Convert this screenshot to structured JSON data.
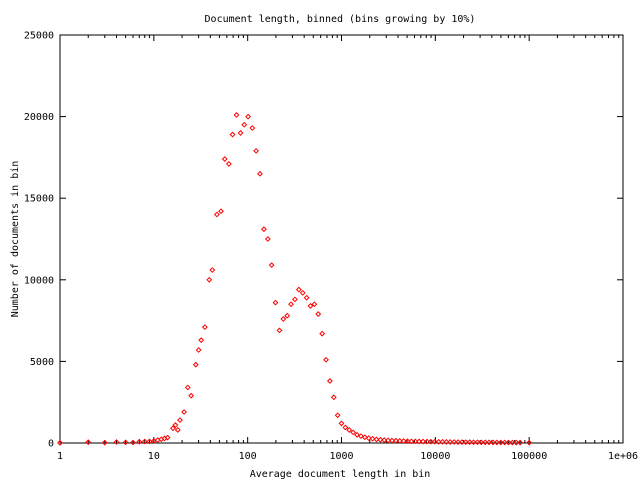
{
  "chart_data": {
    "type": "scatter",
    "title": "Document length, binned (bins growing by 10%)",
    "xlabel": "Average document length in bin",
    "ylabel": "Number of documents in bin",
    "x_scale": "log",
    "xlim": [
      1,
      1000000
    ],
    "ylim": [
      0,
      25000
    ],
    "x_ticks": [
      {
        "value": 1,
        "label": "1"
      },
      {
        "value": 10,
        "label": "10"
      },
      {
        "value": 100,
        "label": "100"
      },
      {
        "value": 1000,
        "label": "1000"
      },
      {
        "value": 10000,
        "label": "10000"
      },
      {
        "value": 100000,
        "label": "100000"
      },
      {
        "value": 1000000,
        "label": "1e+06"
      }
    ],
    "y_ticks": [
      {
        "value": 0,
        "label": "0"
      },
      {
        "value": 5000,
        "label": "5000"
      },
      {
        "value": 10000,
        "label": "10000"
      },
      {
        "value": 15000,
        "label": "15000"
      },
      {
        "value": 20000,
        "label": "20000"
      },
      {
        "value": 25000,
        "label": "25000"
      }
    ],
    "grid": false,
    "legend": "none",
    "marker": "diamond",
    "marker_color": "#ff0000",
    "points": [
      [
        1,
        10
      ],
      [
        2,
        50
      ],
      [
        3,
        20
      ],
      [
        4,
        60
      ],
      [
        5,
        40
      ],
      [
        6,
        30
      ],
      [
        7,
        80
      ],
      [
        8,
        90
      ],
      [
        9,
        100
      ],
      [
        10,
        120
      ],
      [
        11,
        180
      ],
      [
        12,
        230
      ],
      [
        13,
        280
      ],
      [
        14,
        330
      ],
      [
        16,
        900
      ],
      [
        17,
        1100
      ],
      [
        18,
        800
      ],
      [
        19,
        1400
      ],
      [
        21,
        1900
      ],
      [
        23,
        3400
      ],
      [
        25,
        2900
      ],
      [
        28,
        4800
      ],
      [
        30,
        5700
      ],
      [
        32,
        6300
      ],
      [
        35,
        7100
      ],
      [
        39,
        10000
      ],
      [
        42,
        10600
      ],
      [
        47,
        14000
      ],
      [
        52,
        14200
      ],
      [
        57,
        17400
      ],
      [
        63,
        17100
      ],
      [
        69,
        18900
      ],
      [
        76,
        20100
      ],
      [
        84,
        19000
      ],
      [
        92,
        19500
      ],
      [
        101,
        20000
      ],
      [
        112,
        19300
      ],
      [
        123,
        17900
      ],
      [
        135,
        16500
      ],
      [
        149,
        13100
      ],
      [
        164,
        12500
      ],
      [
        180,
        10900
      ],
      [
        198,
        8600
      ],
      [
        218,
        6900
      ],
      [
        240,
        7600
      ],
      [
        264,
        7800
      ],
      [
        290,
        8500
      ],
      [
        319,
        8800
      ],
      [
        351,
        9400
      ],
      [
        386,
        9200
      ],
      [
        425,
        8900
      ],
      [
        467,
        8400
      ],
      [
        514,
        8500
      ],
      [
        565,
        7900
      ],
      [
        622,
        6700
      ],
      [
        684,
        5100
      ],
      [
        752,
        3800
      ],
      [
        828,
        2800
      ],
      [
        910,
        1700
      ],
      [
        1000,
        1200
      ],
      [
        1100,
        950
      ],
      [
        1210,
        800
      ],
      [
        1331,
        650
      ],
      [
        1464,
        500
      ],
      [
        1611,
        420
      ],
      [
        1772,
        350
      ],
      [
        1949,
        300
      ],
      [
        2144,
        260
      ],
      [
        2358,
        220
      ],
      [
        2594,
        200
      ],
      [
        2853,
        180
      ],
      [
        3138,
        160
      ],
      [
        3452,
        150
      ],
      [
        3797,
        140
      ],
      [
        4177,
        130
      ],
      [
        4595,
        120
      ],
      [
        5054,
        110
      ],
      [
        5560,
        100
      ],
      [
        6116,
        100
      ],
      [
        6727,
        95
      ],
      [
        7400,
        90
      ],
      [
        8140,
        85
      ],
      [
        8954,
        80
      ],
      [
        9850,
        75
      ],
      [
        10835,
        70
      ],
      [
        11918,
        70
      ],
      [
        13110,
        65
      ],
      [
        14421,
        60
      ],
      [
        15863,
        60
      ],
      [
        17449,
        55
      ],
      [
        19194,
        55
      ],
      [
        21114,
        50
      ],
      [
        23225,
        50
      ],
      [
        25548,
        45
      ],
      [
        28102,
        45
      ],
      [
        30913,
        40
      ],
      [
        34004,
        40
      ],
      [
        37404,
        40
      ],
      [
        41145,
        35
      ],
      [
        45259,
        35
      ],
      [
        49785,
        30
      ],
      [
        54764,
        30
      ],
      [
        60240,
        30
      ],
      [
        66264,
        25
      ],
      [
        72890,
        25
      ],
      [
        80180,
        25
      ],
      [
        100000,
        20
      ]
    ]
  }
}
